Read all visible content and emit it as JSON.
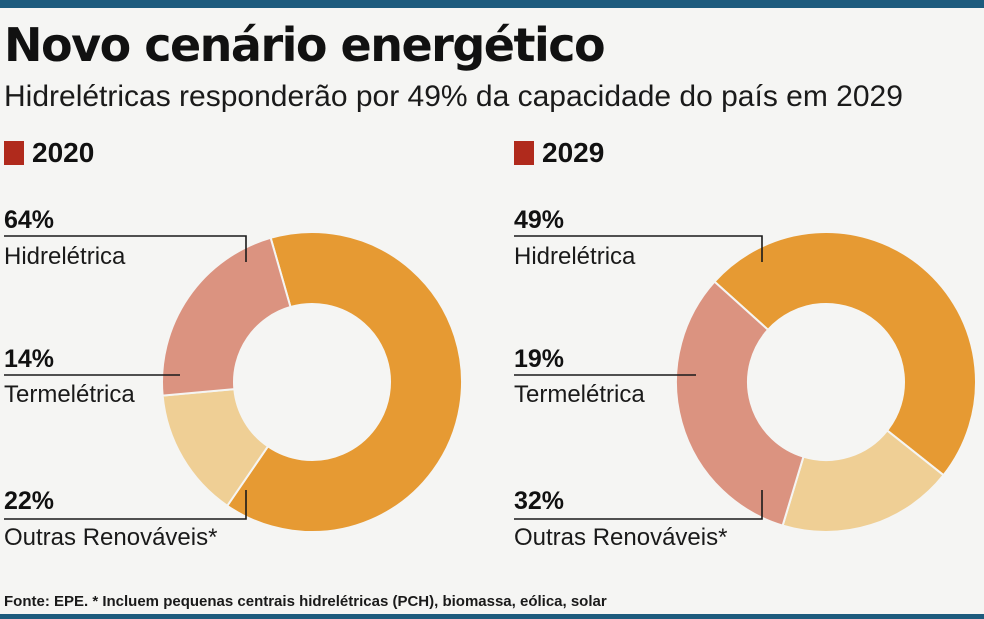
{
  "title": "Novo cenário energético",
  "subtitle": "Hidrelétricas responderão por 49% da capacidade do país em 2029",
  "source": "Fonte: EPE. * Incluem pequenas centrais hidrelétricas (PCH), biomassa, eólica, solar",
  "colors": {
    "rule": "#1d5b7d",
    "year_marker": "#b02a1c",
    "hidreletrica": "#e69a33",
    "termeletrica": "#efcf95",
    "outras": "#db9380"
  },
  "chart_data": [
    {
      "type": "pie",
      "variant": "donut",
      "title": "2020",
      "legend": "none",
      "series": [
        {
          "name": "Hidrelétrica",
          "value": 64,
          "pct_label": "64%",
          "color": "#e69a33"
        },
        {
          "name": "Termelétrica",
          "value": 14,
          "pct_label": "14%",
          "color": "#efcf95"
        },
        {
          "name": "Outras Renováveis*",
          "value": 22,
          "pct_label": "22%",
          "color": "#db9380"
        }
      ]
    },
    {
      "type": "pie",
      "variant": "donut",
      "title": "2029",
      "legend": "none",
      "series": [
        {
          "name": "Hidrelétrica",
          "value": 49,
          "pct_label": "49%",
          "color": "#e69a33"
        },
        {
          "name": "Termelétrica",
          "value": 19,
          "pct_label": "19%",
          "color": "#efcf95"
        },
        {
          "name": "Outras Renováveis*",
          "value": 32,
          "pct_label": "32%",
          "color": "#db9380"
        }
      ]
    }
  ]
}
